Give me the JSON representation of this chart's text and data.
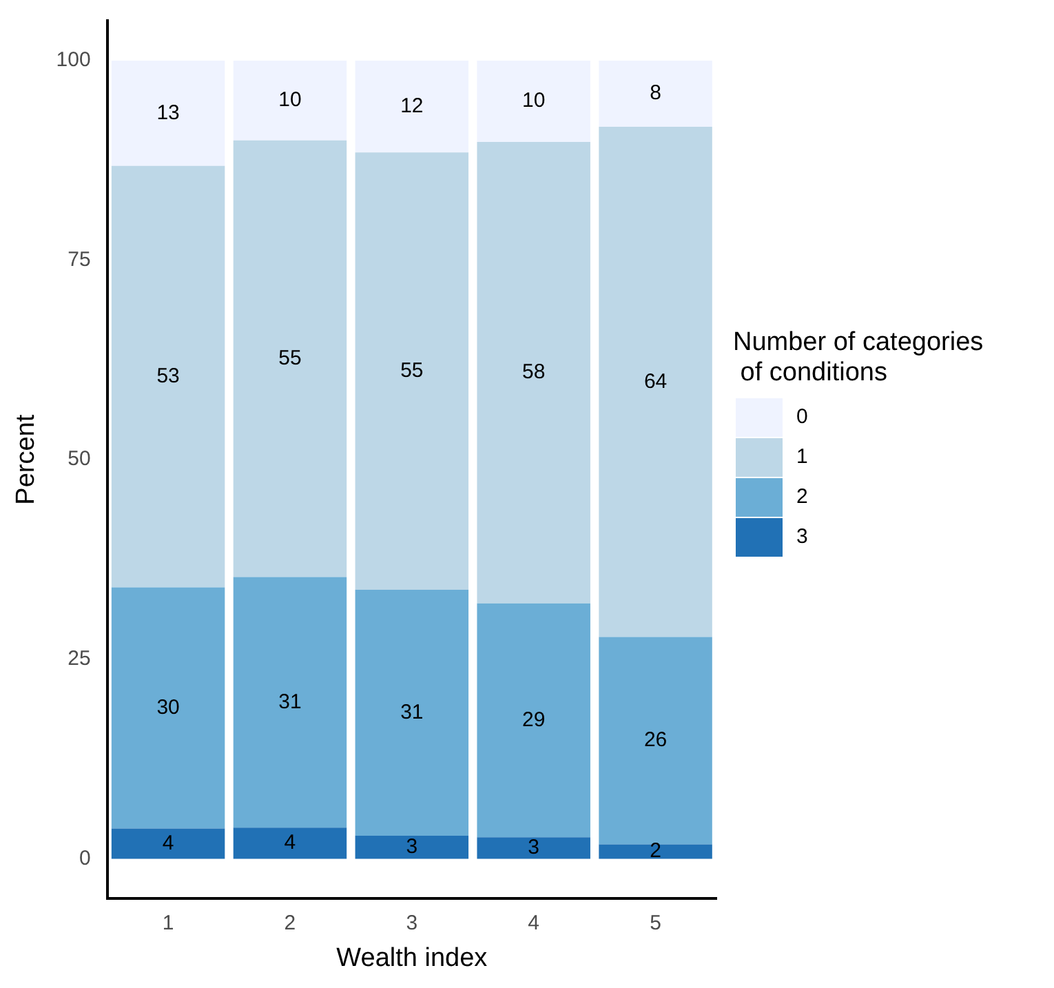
{
  "chart_data": {
    "type": "bar",
    "stacked": true,
    "xlabel": "Wealth index",
    "ylabel": "Percent",
    "legend_title": "Number of categories\n of conditions",
    "legend": "right",
    "grid": false,
    "categories": [
      "1",
      "2",
      "3",
      "4",
      "5"
    ],
    "ylim": [
      -5,
      105
    ],
    "yticks": [
      0,
      25,
      50,
      75,
      100
    ],
    "series": [
      {
        "name": "3",
        "color": "#2171b5",
        "values": [
          3.8,
          3.9,
          2.9,
          2.7,
          1.8
        ],
        "value_labels": [
          "4",
          "4",
          "3",
          "3",
          "2"
        ]
      },
      {
        "name": "2",
        "color": "#6baed6",
        "values": [
          30.2,
          31.4,
          30.8,
          29.3,
          26
        ],
        "value_labels": [
          "30",
          "31",
          "31",
          "29",
          "26"
        ]
      },
      {
        "name": "1",
        "color": "#bdd7e7",
        "values": [
          52.8,
          54.7,
          54.8,
          57.8,
          63.9
        ],
        "value_labels": [
          "53",
          "55",
          "55",
          "58",
          "64"
        ]
      },
      {
        "name": "0",
        "color": "#eff3ff",
        "values": [
          13.2,
          10,
          11.5,
          10.2,
          8.3
        ],
        "value_labels": [
          "13",
          "10",
          "12",
          "10",
          "8"
        ]
      }
    ]
  }
}
